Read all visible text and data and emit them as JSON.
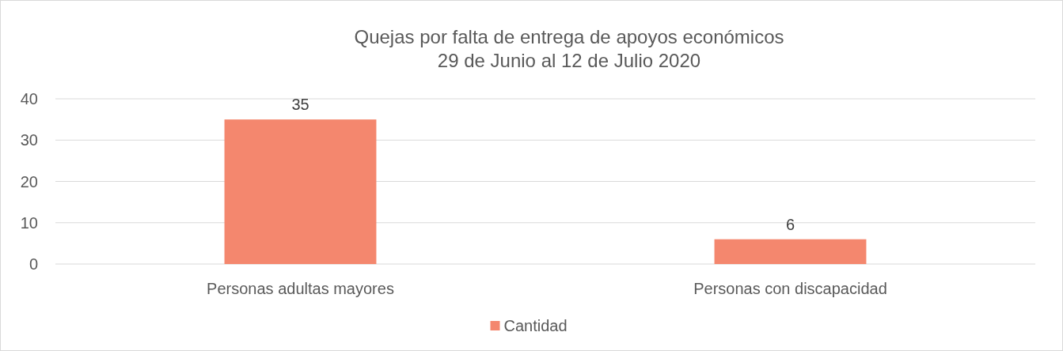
{
  "chart_data": {
    "type": "bar",
    "title": "Quejas por falta de entrega de apoyos económicos\n29 de Junio al 12 de Julio 2020",
    "categories": [
      "Personas adultas mayores",
      "Personas con discapacidad"
    ],
    "series": [
      {
        "name": "Cantidad",
        "color": "#f4876e",
        "values": [
          35,
          6
        ]
      }
    ],
    "ylim": [
      0,
      40
    ],
    "yticks": [
      0,
      10,
      20,
      30,
      40
    ],
    "grid": "y",
    "legend": "bottom",
    "data_labels": true
  }
}
